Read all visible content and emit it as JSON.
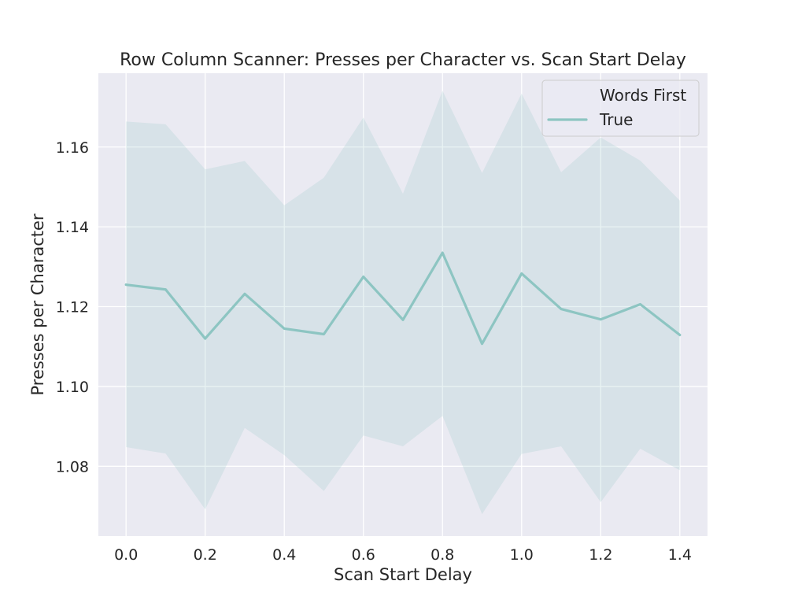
{
  "chart_data": {
    "type": "line",
    "title": "Row Column Scanner: Presses per Character vs. Scan Start Delay",
    "xlabel": "Scan Start Delay",
    "ylabel": "Presses per Character",
    "xlim": [
      -0.07,
      1.47
    ],
    "ylim": [
      1.0625,
      1.1785
    ],
    "x_ticks": [
      "0.0",
      "0.2",
      "0.4",
      "0.6",
      "0.8",
      "1.0",
      "1.2",
      "1.4"
    ],
    "y_ticks": [
      "1.08",
      "1.10",
      "1.12",
      "1.14",
      "1.16"
    ],
    "grid": true,
    "legend": {
      "title": "Words First",
      "placement": "top-right",
      "entries": [
        "True"
      ]
    },
    "x": [
      0.0,
      0.1,
      0.2,
      0.3,
      0.4,
      0.5,
      0.6,
      0.7,
      0.8,
      0.9,
      1.0,
      1.1,
      1.2,
      1.3,
      1.4
    ],
    "series": [
      {
        "name": "True",
        "color": "#8dc5c2",
        "values": [
          1.1255,
          1.1243,
          1.112,
          1.1232,
          1.1145,
          1.1131,
          1.1275,
          1.1167,
          1.1335,
          1.1107,
          1.1283,
          1.1194,
          1.1168,
          1.1206,
          1.1129
        ],
        "ci_upper": [
          1.1664,
          1.1657,
          1.1544,
          1.1565,
          1.1454,
          1.1523,
          1.1674,
          1.1483,
          1.1741,
          1.1535,
          1.1734,
          1.1537,
          1.1624,
          1.1566,
          1.1466
        ],
        "ci_lower": [
          1.0848,
          1.0832,
          1.0692,
          1.0896,
          1.0828,
          1.0738,
          1.0877,
          1.085,
          1.0926,
          1.068,
          1.0831,
          1.085,
          1.071,
          1.0844,
          1.079
        ]
      }
    ]
  },
  "style": {
    "background": "#ffffff",
    "plot_bg": "#eaeaf2",
    "grid_color": "#ffffff",
    "line_color": "#8dc5c2",
    "band_color": "#8dc5c2"
  }
}
